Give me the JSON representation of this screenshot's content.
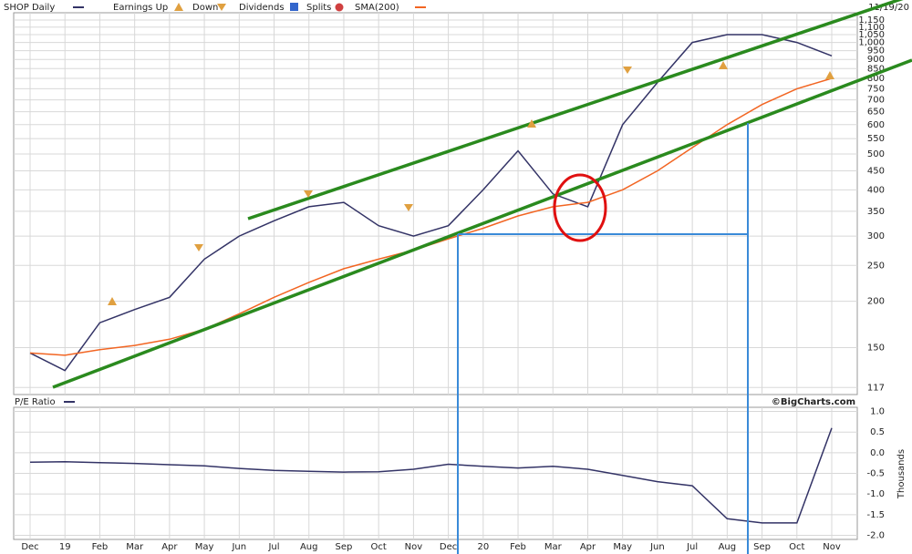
{
  "chart_data": [
    {
      "type": "line",
      "title": "SHOP Daily",
      "date": "11/19/20",
      "source": "©BigCharts.com",
      "legend_items": [
        "Earnings Up",
        "Down",
        "Dividends",
        "Splits"
      ],
      "log_scale": true,
      "grid": true,
      "ylim": [
        112,
        1203
      ],
      "yticks": [
        117,
        150,
        200,
        250,
        300,
        350,
        400,
        450,
        500,
        550,
        600,
        650,
        700,
        750,
        800,
        850,
        900,
        950,
        {
          "value": 1000,
          "label": "1,000"
        },
        {
          "value": 1050,
          "label": "1,050"
        },
        {
          "value": 1100,
          "label": "1,100"
        },
        {
          "value": 1150,
          "label": "1,150"
        }
      ],
      "series": [
        {
          "name": "SHOP Daily",
          "color": "#333366",
          "values": [
            145,
            130,
            175,
            190,
            205,
            260,
            300,
            330,
            360,
            370,
            320,
            300,
            320,
            400,
            510,
            390,
            360,
            600,
            780,
            1000,
            1050,
            1050,
            1000,
            920
          ]
        },
        {
          "name": "SMA(200)",
          "color": "#f26522",
          "values": [
            145,
            143,
            148,
            152,
            158,
            168,
            185,
            205,
            225,
            245,
            260,
            275,
            295,
            315,
            340,
            360,
            370,
            400,
            450,
            520,
            600,
            680,
            750,
            800
          ]
        }
      ]
    },
    {
      "type": "line",
      "title": "P/E Ratio",
      "y_axis_label": "Thousands",
      "grid": true,
      "categories": [
        "Dec",
        "19",
        "Feb",
        "Mar",
        "Apr",
        "May",
        "Jun",
        "Jul",
        "Aug",
        "Sep",
        "Oct",
        "Nov",
        "Dec",
        "20",
        "Feb",
        "Mar",
        "Apr",
        "May",
        "Jun",
        "Jul",
        "Aug",
        "Sep",
        "Oct",
        "Nov"
      ],
      "ylim": [
        -2.1,
        1.1
      ],
      "yticks": [
        {
          "value": 1,
          "label": "1.0"
        },
        0.5,
        {
          "value": 0,
          "label": "0.0"
        },
        -0.5,
        {
          "value": -1,
          "label": "-1.0"
        },
        -1.5,
        {
          "value": -2,
          "label": "-2.0"
        }
      ],
      "series": [
        {
          "name": "P/E Ratio",
          "color": "#333366",
          "values": [
            -0.23,
            -0.22,
            -0.24,
            -0.26,
            -0.29,
            -0.32,
            -0.38,
            -0.43,
            -0.45,
            -0.47,
            -0.46,
            -0.4,
            -0.28,
            -0.33,
            -0.37,
            -0.33,
            -0.4,
            -0.55,
            -0.7,
            -0.8,
            -1.6,
            -1.7,
            -1.7,
            0.6
          ]
        }
      ]
    }
  ]
}
